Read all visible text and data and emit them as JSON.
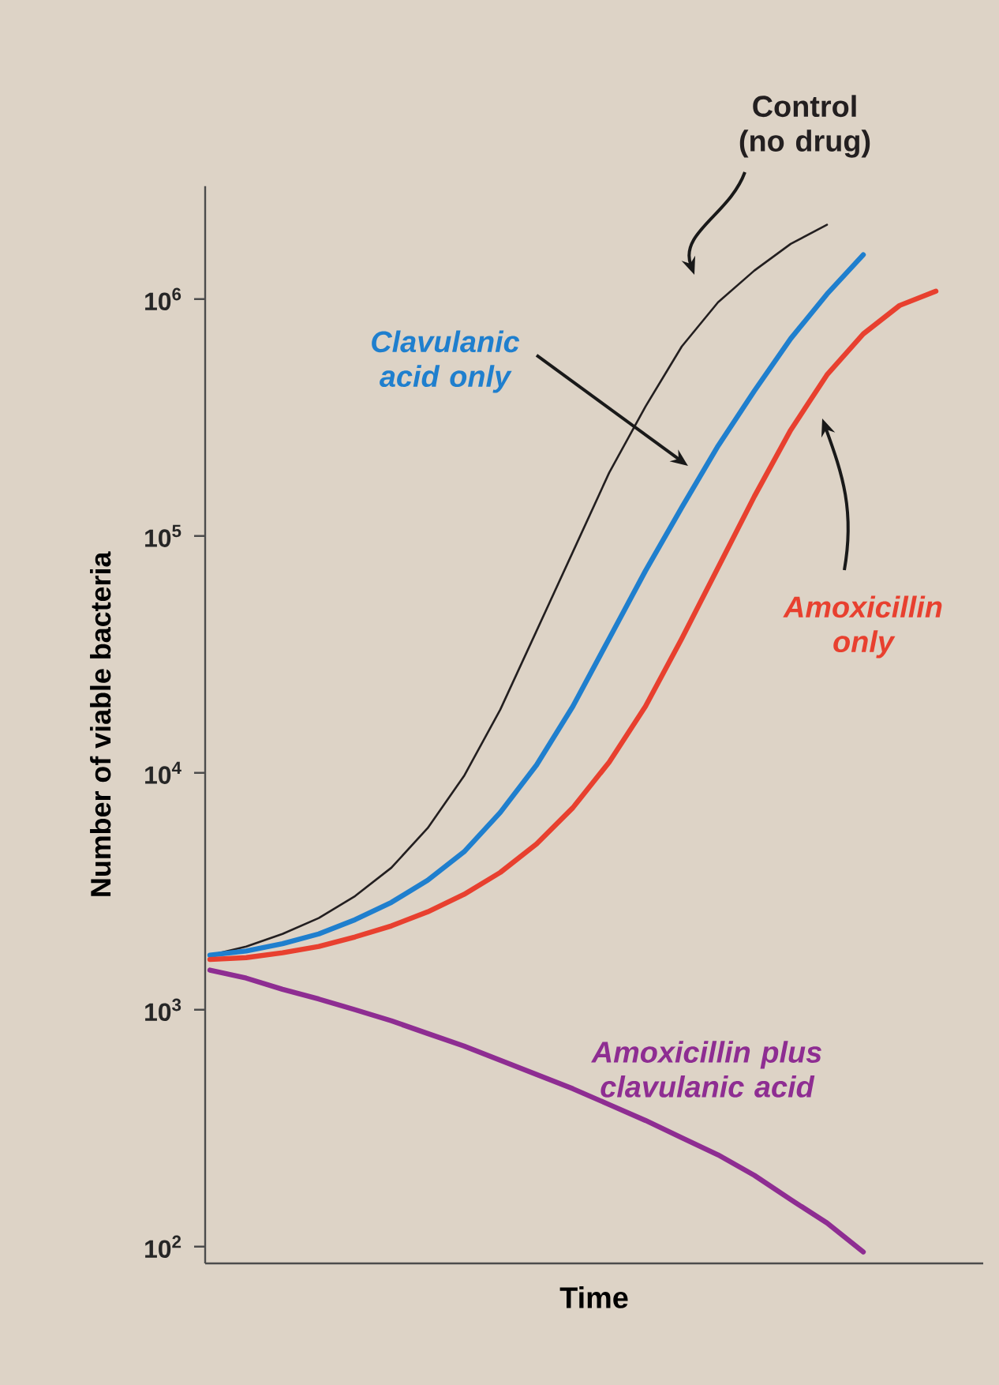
{
  "chart_data": {
    "type": "line",
    "xlabel": "Time",
    "ylabel": "Number of viable bacteria",
    "log": "y",
    "categories": [
      null,
      null,
      null,
      null,
      null,
      null,
      null,
      null,
      null,
      null,
      null,
      null,
      null,
      null,
      null,
      null,
      null,
      null,
      null,
      null,
      null
    ],
    "ylim": [
      85,
      3000000
    ],
    "yticks": [
      {
        "value": 100,
        "label": "10$^{2}$"
      },
      {
        "value": 1000,
        "label": "10$^{3}$"
      },
      {
        "value": 10000,
        "label": "10$^{4}$"
      },
      {
        "value": 100000,
        "label": "10$^{5}$"
      },
      {
        "value": 1000000,
        "label": "10$^{6}$"
      }
    ],
    "series": [
      {
        "name": "Control (no drug)",
        "color": "#231f20",
        "values": [
          1700,
          1850,
          2090,
          2440,
          3020,
          3980,
          5850,
          9700,
          18500,
          39800,
          85700,
          185000,
          352000,
          631000,
          970000,
          1320000,
          1710000,
          2060000,
          null,
          null,
          null
        ]
      },
      {
        "name": "Clavulanic acid only",
        "color": "#1f7fce",
        "values": [
          1700,
          1770,
          1900,
          2090,
          2400,
          2840,
          3520,
          4640,
          6810,
          10800,
          19100,
          36900,
          71300,
          132000,
          240000,
          410000,
          681000,
          1050000,
          1540000,
          null,
          null
        ]
      },
      {
        "name": "Amoxicillin only",
        "color": "#e8402f",
        "values": [
          1630,
          1660,
          1740,
          1850,
          2030,
          2260,
          2590,
          3070,
          3800,
          5010,
          7130,
          11100,
          19100,
          36900,
          73600,
          147000,
          280000,
          479000,
          713000,
          940000,
          1080000
        ]
      },
      {
        "name": "Amoxicillin plus clavulanic acid",
        "color": "#8e2d92",
        "values": [
          1470,
          1360,
          1220,
          1110,
          1000,
          898,
          794,
          703,
          612,
          533,
          464,
          398,
          341,
          288,
          244,
          200,
          158,
          126,
          95,
          null,
          null
        ]
      }
    ]
  }
}
